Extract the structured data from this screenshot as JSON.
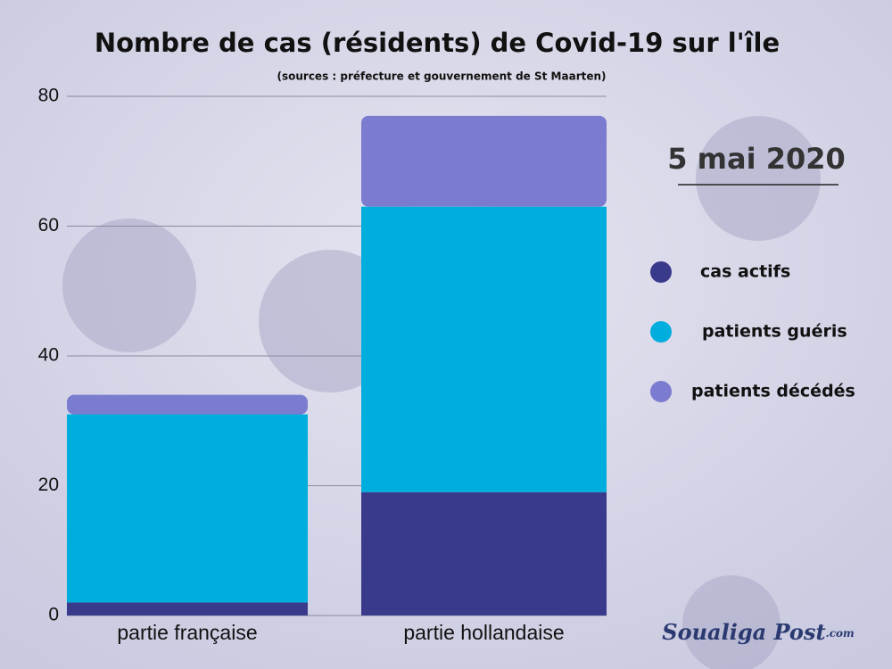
{
  "chart_data": {
    "type": "stacked_bar",
    "title": "Nombre de  cas (résidents) de Covid-19 sur l'île",
    "subtitle": "(sources : préfecture et gouvernement de St Maarten)",
    "date": "5 mai 2020",
    "logo": {
      "name": "Soualiga Post",
      "suffix": ".com"
    },
    "categories": [
      "partie française",
      "partie hollandaise"
    ],
    "series": [
      {
        "name": "cas actifs",
        "color": "#3a3a8c",
        "values": [
          2,
          19
        ]
      },
      {
        "name": "patients guéris",
        "color": "#00aede",
        "values": [
          29,
          44
        ]
      },
      {
        "name": "patients décédés",
        "color": "#7b7bd0",
        "values": [
          3,
          14
        ]
      }
    ],
    "ylim": [
      0,
      80
    ],
    "yticks": [
      0,
      20,
      40,
      60,
      80
    ],
    "grid": true,
    "legend": "right"
  }
}
